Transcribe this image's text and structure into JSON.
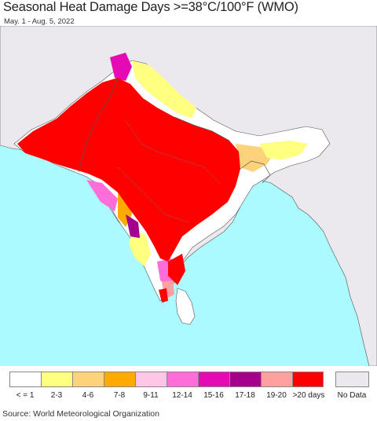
{
  "header": {
    "title": "Seasonal Heat Damage Days >=38°C/100°F (WMO)",
    "subtitle": "May. 1 - Aug. 5, 2022"
  },
  "colors": {
    "ocean": "#aafaff",
    "land_no_data": "#ece9ee",
    "border": "#555555",
    "white_cat": "#ffffff",
    "yellow_cat": "#ffff80",
    "tan_cat": "#fcd27a",
    "orange_cat": "#ffaa00",
    "lightpink_cat": "#ffc6e6",
    "pink_cat": "#ff6ed8",
    "magenta_cat": "#e60ab4",
    "purple_cat": "#a5008c",
    "salmon_cat": "#ff9f9f",
    "red_cat": "#ff0000"
  },
  "legend": {
    "items": [
      {
        "label": "< = 1",
        "color": "#ffffff"
      },
      {
        "label": "2-3",
        "color": "#ffff80"
      },
      {
        "label": "4-6",
        "color": "#fcd27a"
      },
      {
        "label": "7-8",
        "color": "#ffaa00"
      },
      {
        "label": "9-11",
        "color": "#ffc6e6"
      },
      {
        "label": "12-14",
        "color": "#ff6ed8"
      },
      {
        "label": "15-16",
        "color": "#e60ab4"
      },
      {
        "label": "17-18",
        "color": "#a5008c"
      },
      {
        "label": "19-20",
        "color": "#ff9f9f"
      },
      {
        "label": ">20 days",
        "color": "#ff0000"
      }
    ],
    "no_data": {
      "label": "No Data",
      "color": "#ece9ee"
    }
  },
  "footer": {
    "source": "Source: World Meteorological Organization"
  }
}
